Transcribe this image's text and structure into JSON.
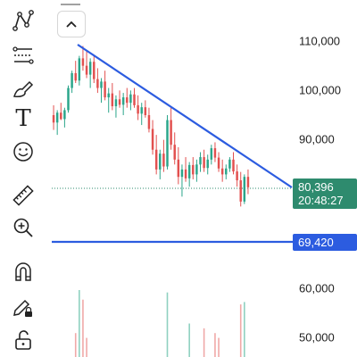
{
  "header": {
    "collapse_label": "^"
  },
  "toolbar": {
    "text_tool_glyph": "T",
    "tools": [
      "trend-line-tool",
      "fib-retracement-tool",
      "brush-tool",
      "text-tool",
      "emoji-tool",
      "ruler-tool",
      "zoom-in-tool",
      "magnet-tool",
      "lock-drawings-tool",
      "unlock-tool"
    ]
  },
  "price_axis": {
    "labels": [
      "110,000",
      "100,000",
      "90,000",
      "60,000",
      "50,000"
    ]
  },
  "current_price": {
    "value": "80,396",
    "countdown": "20:48:27",
    "color": "#2e8b6e"
  },
  "horizontal_line": {
    "value": "69,420",
    "color": "#2c5ce0"
  },
  "colors": {
    "up": "#2aa58a",
    "down": "#e2504f",
    "line": "#2c5ce0"
  },
  "chart_data": {
    "type": "candlestick",
    "ylim": [
      45000,
      117000
    ],
    "candles": [
      {
        "o": 95000,
        "h": 97000,
        "l": 92000,
        "c": 93500
      },
      {
        "o": 93500,
        "h": 96000,
        "l": 91000,
        "c": 95500
      },
      {
        "o": 95500,
        "h": 97500,
        "l": 94000,
        "c": 94200
      },
      {
        "o": 94200,
        "h": 96500,
        "l": 92500,
        "c": 96000
      },
      {
        "o": 96000,
        "h": 101000,
        "l": 95500,
        "c": 100500
      },
      {
        "o": 100500,
        "h": 104000,
        "l": 99500,
        "c": 103500
      },
      {
        "o": 103500,
        "h": 106000,
        "l": 101500,
        "c": 102000
      },
      {
        "o": 102000,
        "h": 107000,
        "l": 101000,
        "c": 106500
      },
      {
        "o": 106500,
        "h": 109000,
        "l": 104000,
        "c": 105000
      },
      {
        "o": 105000,
        "h": 108000,
        "l": 102500,
        "c": 103200
      },
      {
        "o": 103200,
        "h": 106500,
        "l": 100500,
        "c": 105800
      },
      {
        "o": 105800,
        "h": 107000,
        "l": 101500,
        "c": 102300
      },
      {
        "o": 102300,
        "h": 104500,
        "l": 99500,
        "c": 100500
      },
      {
        "o": 100500,
        "h": 102500,
        "l": 97500,
        "c": 101800
      },
      {
        "o": 101800,
        "h": 104000,
        "l": 98000,
        "c": 98600
      },
      {
        "o": 98600,
        "h": 100500,
        "l": 95500,
        "c": 99400
      },
      {
        "o": 99400,
        "h": 101500,
        "l": 96000,
        "c": 96800
      },
      {
        "o": 96800,
        "h": 99000,
        "l": 94500,
        "c": 98200
      },
      {
        "o": 98200,
        "h": 100000,
        "l": 96500,
        "c": 97100
      },
      {
        "o": 97100,
        "h": 99500,
        "l": 95000,
        "c": 98600
      },
      {
        "o": 98600,
        "h": 100500,
        "l": 96500,
        "c": 97500
      },
      {
        "o": 97500,
        "h": 100000,
        "l": 96000,
        "c": 99200
      },
      {
        "o": 99200,
        "h": 100500,
        "l": 96500,
        "c": 97000
      },
      {
        "o": 97000,
        "h": 99000,
        "l": 94000,
        "c": 95300
      },
      {
        "o": 95300,
        "h": 97500,
        "l": 93000,
        "c": 96600
      },
      {
        "o": 96600,
        "h": 98000,
        "l": 94500,
        "c": 95000
      },
      {
        "o": 95000,
        "h": 96500,
        "l": 91500,
        "c": 92200
      },
      {
        "o": 92200,
        "h": 94000,
        "l": 87000,
        "c": 88000
      },
      {
        "o": 88000,
        "h": 91000,
        "l": 83000,
        "c": 84000
      },
      {
        "o": 84000,
        "h": 88000,
        "l": 82000,
        "c": 87200
      },
      {
        "o": 87200,
        "h": 90000,
        "l": 83500,
        "c": 84600
      },
      {
        "o": 84600,
        "h": 95000,
        "l": 84000,
        "c": 94000
      },
      {
        "o": 94000,
        "h": 96500,
        "l": 88000,
        "c": 89000
      },
      {
        "o": 89000,
        "h": 91500,
        "l": 85000,
        "c": 86000
      },
      {
        "o": 86000,
        "h": 88500,
        "l": 81000,
        "c": 82500
      },
      {
        "o": 82500,
        "h": 85000,
        "l": 78500,
        "c": 84000
      },
      {
        "o": 84000,
        "h": 86500,
        "l": 81500,
        "c": 82200
      },
      {
        "o": 82200,
        "h": 85500,
        "l": 80500,
        "c": 84900
      },
      {
        "o": 84900,
        "h": 86500,
        "l": 82000,
        "c": 83000
      },
      {
        "o": 83000,
        "h": 86000,
        "l": 81500,
        "c": 85000
      },
      {
        "o": 85000,
        "h": 87500,
        "l": 83500,
        "c": 86500
      },
      {
        "o": 86500,
        "h": 88000,
        "l": 83500,
        "c": 84300
      },
      {
        "o": 84300,
        "h": 87000,
        "l": 83000,
        "c": 86000
      },
      {
        "o": 86000,
        "h": 89000,
        "l": 85000,
        "c": 88300
      },
      {
        "o": 88300,
        "h": 89500,
        "l": 85500,
        "c": 86400
      },
      {
        "o": 86400,
        "h": 87500,
        "l": 83500,
        "c": 84200
      },
      {
        "o": 84200,
        "h": 86000,
        "l": 81500,
        "c": 83000
      },
      {
        "o": 83000,
        "h": 85000,
        "l": 82000,
        "c": 84200
      },
      {
        "o": 84200,
        "h": 86500,
        "l": 83500,
        "c": 86000
      },
      {
        "o": 86000,
        "h": 87500,
        "l": 83000,
        "c": 83600
      },
      {
        "o": 83600,
        "h": 85000,
        "l": 80500,
        "c": 81800
      },
      {
        "o": 81800,
        "h": 83500,
        "l": 76500,
        "c": 77500
      },
      {
        "o": 77500,
        "h": 83000,
        "l": 77000,
        "c": 82500
      },
      {
        "o": 82500,
        "h": 84000,
        "l": 79000,
        "c": 80396
      }
    ],
    "volumes": [
      0,
      0,
      0,
      0,
      0,
      0,
      5000,
      14000,
      12000,
      4000,
      0,
      0,
      0,
      0,
      0,
      0,
      0,
      0,
      0,
      0,
      0,
      0,
      0,
      0,
      0,
      0,
      0,
      0,
      0,
      0,
      0,
      13500,
      0,
      0,
      0,
      0,
      0,
      7000,
      0,
      0,
      0,
      6000,
      0,
      0,
      5000,
      4000,
      0,
      0,
      0,
      0,
      0,
      11000,
      11500,
      0
    ]
  }
}
